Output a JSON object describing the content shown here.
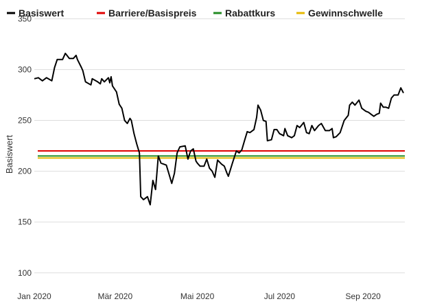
{
  "chart_data": {
    "type": "line",
    "title": "",
    "ylabel": "Basiswert",
    "xlabel": "",
    "ylim": [
      85,
      355
    ],
    "xlim": [
      "2020-01-01",
      "2020-10-02"
    ],
    "grid": true,
    "legend_position": "top",
    "yticks": [
      {
        "value": 100,
        "label": "100"
      },
      {
        "value": 150,
        "label": "150"
      },
      {
        "value": 200,
        "label": "200"
      },
      {
        "value": 250,
        "label": "250"
      },
      {
        "value": 300,
        "label": "300"
      },
      {
        "value": 350,
        "label": "350"
      }
    ],
    "xticks": [
      {
        "date": "2020-01-01",
        "label": "Jan 2020"
      },
      {
        "date": "2020-03-01",
        "label": "Mär 2020"
      },
      {
        "date": "2020-05-01",
        "label": "Mai 2020"
      },
      {
        "date": "2020-07-01",
        "label": "Jul 2020"
      },
      {
        "date": "2020-09-01",
        "label": "Sep 2020"
      }
    ],
    "series": [
      {
        "name": "Basiswert",
        "color": "#000000",
        "points": [
          [
            "2020-01-01",
            291
          ],
          [
            "2020-01-04",
            292
          ],
          [
            "2020-01-07",
            289
          ],
          [
            "2020-01-10",
            292
          ],
          [
            "2020-01-14",
            289
          ],
          [
            "2020-01-16",
            302
          ],
          [
            "2020-01-18",
            310
          ],
          [
            "2020-01-22",
            310
          ],
          [
            "2020-01-24",
            316
          ],
          [
            "2020-01-27",
            311
          ],
          [
            "2020-01-30",
            311
          ],
          [
            "2020-02-01",
            314
          ],
          [
            "2020-02-02",
            310
          ],
          [
            "2020-02-05",
            302
          ],
          [
            "2020-02-06",
            299
          ],
          [
            "2020-02-08",
            288
          ],
          [
            "2020-02-12",
            285
          ],
          [
            "2020-02-13",
            291
          ],
          [
            "2020-02-17",
            288
          ],
          [
            "2020-02-19",
            286
          ],
          [
            "2020-02-20",
            291
          ],
          [
            "2020-02-22",
            288
          ],
          [
            "2020-02-25",
            292
          ],
          [
            "2020-02-26",
            287
          ],
          [
            "2020-02-27",
            293
          ],
          [
            "2020-02-28",
            284
          ],
          [
            "2020-03-02",
            278
          ],
          [
            "2020-03-04",
            266
          ],
          [
            "2020-03-06",
            262
          ],
          [
            "2020-03-08",
            250
          ],
          [
            "2020-03-10",
            247
          ],
          [
            "2020-03-12",
            252
          ],
          [
            "2020-03-13",
            250
          ],
          [
            "2020-03-15",
            237
          ],
          [
            "2020-03-17",
            227
          ],
          [
            "2020-03-19",
            218
          ],
          [
            "2020-03-20",
            175
          ],
          [
            "2020-03-22",
            172
          ],
          [
            "2020-03-25",
            175
          ],
          [
            "2020-03-27",
            167
          ],
          [
            "2020-03-29",
            191
          ],
          [
            "2020-03-31",
            182
          ],
          [
            "2020-04-02",
            215
          ],
          [
            "2020-04-04",
            208
          ],
          [
            "2020-04-08",
            206
          ],
          [
            "2020-04-10",
            197
          ],
          [
            "2020-04-12",
            188
          ],
          [
            "2020-04-14",
            198
          ],
          [
            "2020-04-16",
            218
          ],
          [
            "2020-04-18",
            224
          ],
          [
            "2020-04-22",
            225
          ],
          [
            "2020-04-24",
            212
          ],
          [
            "2020-04-26",
            220
          ],
          [
            "2020-04-28",
            222
          ],
          [
            "2020-04-30",
            210
          ],
          [
            "2020-05-01",
            208
          ],
          [
            "2020-05-03",
            205
          ],
          [
            "2020-05-06",
            205
          ],
          [
            "2020-05-08",
            212
          ],
          [
            "2020-05-10",
            203
          ],
          [
            "2020-05-12",
            200
          ],
          [
            "2020-05-14",
            194
          ],
          [
            "2020-05-16",
            211
          ],
          [
            "2020-05-19",
            207
          ],
          [
            "2020-05-21",
            205
          ],
          [
            "2020-05-23",
            198
          ],
          [
            "2020-05-24",
            195
          ],
          [
            "2020-05-27",
            208
          ],
          [
            "2020-05-30",
            220
          ],
          [
            "2020-06-01",
            218
          ],
          [
            "2020-06-03",
            221
          ],
          [
            "2020-06-05",
            230
          ],
          [
            "2020-06-07",
            239
          ],
          [
            "2020-06-09",
            238
          ],
          [
            "2020-06-12",
            241
          ],
          [
            "2020-06-14",
            253
          ],
          [
            "2020-06-15",
            265
          ],
          [
            "2020-06-17",
            260
          ],
          [
            "2020-06-19",
            250
          ],
          [
            "2020-06-21",
            249
          ],
          [
            "2020-06-22",
            230
          ],
          [
            "2020-06-25",
            231
          ],
          [
            "2020-06-27",
            241
          ],
          [
            "2020-06-29",
            241
          ],
          [
            "2020-07-01",
            237
          ],
          [
            "2020-07-04",
            235
          ],
          [
            "2020-07-05",
            242
          ],
          [
            "2020-07-07",
            235
          ],
          [
            "2020-07-10",
            233
          ],
          [
            "2020-07-12",
            235
          ],
          [
            "2020-07-14",
            245
          ],
          [
            "2020-07-16",
            243
          ],
          [
            "2020-07-19",
            248
          ],
          [
            "2020-07-21",
            238
          ],
          [
            "2020-07-23",
            237
          ],
          [
            "2020-07-25",
            245
          ],
          [
            "2020-07-27",
            240
          ],
          [
            "2020-07-30",
            245
          ],
          [
            "2020-08-01",
            247
          ],
          [
            "2020-08-04",
            240
          ],
          [
            "2020-08-07",
            240
          ],
          [
            "2020-08-09",
            242
          ],
          [
            "2020-08-10",
            233
          ],
          [
            "2020-08-12",
            234
          ],
          [
            "2020-08-15",
            238
          ],
          [
            "2020-08-18",
            250
          ],
          [
            "2020-08-21",
            255
          ],
          [
            "2020-08-22",
            265
          ],
          [
            "2020-08-24",
            268
          ],
          [
            "2020-08-26",
            265
          ],
          [
            "2020-08-29",
            270
          ],
          [
            "2020-08-31",
            262
          ],
          [
            "2020-09-03",
            259
          ],
          [
            "2020-09-05",
            258
          ],
          [
            "2020-09-07",
            256
          ],
          [
            "2020-09-09",
            254
          ],
          [
            "2020-09-11",
            256
          ],
          [
            "2020-09-13",
            257
          ],
          [
            "2020-09-14",
            267
          ],
          [
            "2020-09-16",
            263
          ],
          [
            "2020-09-18",
            263
          ],
          [
            "2020-09-20",
            262
          ],
          [
            "2020-09-22",
            272
          ],
          [
            "2020-09-24",
            275
          ],
          [
            "2020-09-27",
            275
          ],
          [
            "2020-09-29",
            282
          ],
          [
            "2020-10-01",
            277
          ]
        ]
      },
      {
        "name": "Barriere/Basispreis",
        "color": "#e00000",
        "constant": 220
      },
      {
        "name": "Rabattkurs",
        "color": "#228B22",
        "constant": 215
      },
      {
        "name": "Gewinnschwelle",
        "color": "#e6b800",
        "constant": 213
      }
    ]
  }
}
